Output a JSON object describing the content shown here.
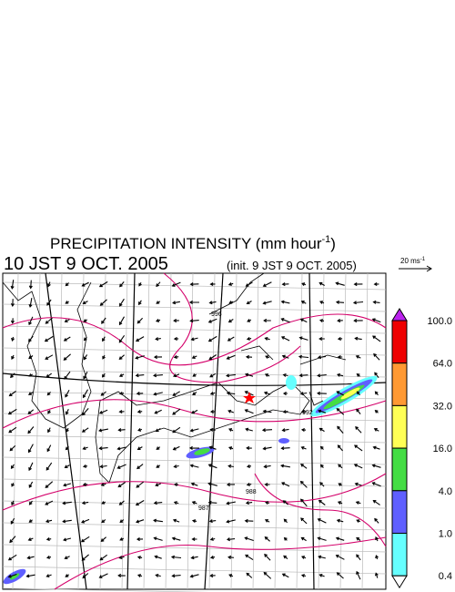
{
  "header": {
    "title": "PRECIPITATION INTENSITY (mm hour",
    "title_sup": "-1",
    "title_end": ")",
    "time": "10 JST 9 OCT. 2005",
    "init": "(init. 9 JST 9 OCT. 2005)"
  },
  "scale": {
    "label": "20 ms",
    "sup": "-1"
  },
  "colorbar": {
    "labels": [
      "100.0",
      "64.0",
      "32.0",
      "16.0",
      "4.0",
      "1.0",
      "0.4"
    ],
    "colors": [
      "#ee0000",
      "#ff9933",
      "#ffff55",
      "#44dd44",
      "#5f5fff",
      "#66ffff"
    ],
    "over": "#bb22ee",
    "under": "#ffffff"
  },
  "contour_labels": [
    "996",
    "992",
    "988",
    "987"
  ]
}
